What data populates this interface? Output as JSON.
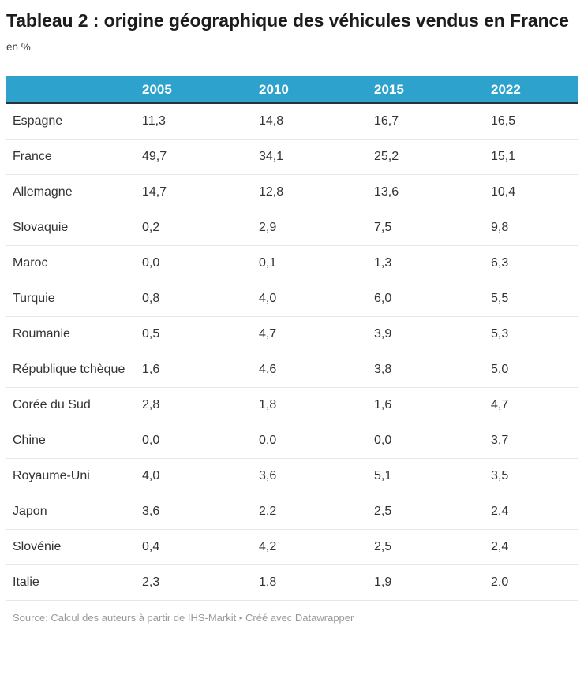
{
  "page": {
    "title": "Tableau 2 : origine géographique des véhicules vendus en France",
    "subtitle": "en %"
  },
  "chart_data": {
    "type": "table",
    "title": "Tableau 2 : origine géographique des véhicules vendus en France",
    "unit": "en %",
    "columns": [
      "",
      "2005",
      "2010",
      "2015",
      "2022"
    ],
    "rows": [
      {
        "label": "Espagne",
        "values": [
          "11,3",
          "14,8",
          "16,7",
          "16,5"
        ]
      },
      {
        "label": "France",
        "values": [
          "49,7",
          "34,1",
          "25,2",
          "15,1"
        ]
      },
      {
        "label": "Allemagne",
        "values": [
          "14,7",
          "12,8",
          "13,6",
          "10,4"
        ]
      },
      {
        "label": "Slovaquie",
        "values": [
          "0,2",
          "2,9",
          "7,5",
          "9,8"
        ]
      },
      {
        "label": "Maroc",
        "values": [
          "0,0",
          "0,1",
          "1,3",
          "6,3"
        ]
      },
      {
        "label": "Turquie",
        "values": [
          "0,8",
          "4,0",
          "6,0",
          "5,5"
        ]
      },
      {
        "label": "Roumanie",
        "values": [
          "0,5",
          "4,7",
          "3,9",
          "5,3"
        ]
      },
      {
        "label": "République tchèque",
        "values": [
          "1,6",
          "4,6",
          "3,8",
          "5,0"
        ]
      },
      {
        "label": "Corée du Sud",
        "values": [
          "2,8",
          "1,8",
          "1,6",
          "4,7"
        ]
      },
      {
        "label": "Chine",
        "values": [
          "0,0",
          "0,0",
          "0,0",
          "3,7"
        ]
      },
      {
        "label": "Royaume-Uni",
        "values": [
          "4,0",
          "3,6",
          "5,1",
          "3,5"
        ]
      },
      {
        "label": "Japon",
        "values": [
          "3,6",
          "2,2",
          "2,5",
          "2,4"
        ]
      },
      {
        "label": "Slovénie",
        "values": [
          "0,4",
          "4,2",
          "2,5",
          "2,4"
        ]
      },
      {
        "label": "Italie",
        "values": [
          "2,3",
          "1,8",
          "1,9",
          "2,0"
        ]
      }
    ]
  },
  "footer": {
    "source": "Source: Calcul des auteurs à partir de IHS-Markit",
    "separator": "•",
    "credit": "Créé avec Datawrapper"
  },
  "colors": {
    "header_bg": "#2CA2CC",
    "header_text": "#ffffff",
    "header_underline": "#29323A",
    "row_divider": "#E6E6E6",
    "body_text": "#333333",
    "muted_text": "#999999"
  }
}
